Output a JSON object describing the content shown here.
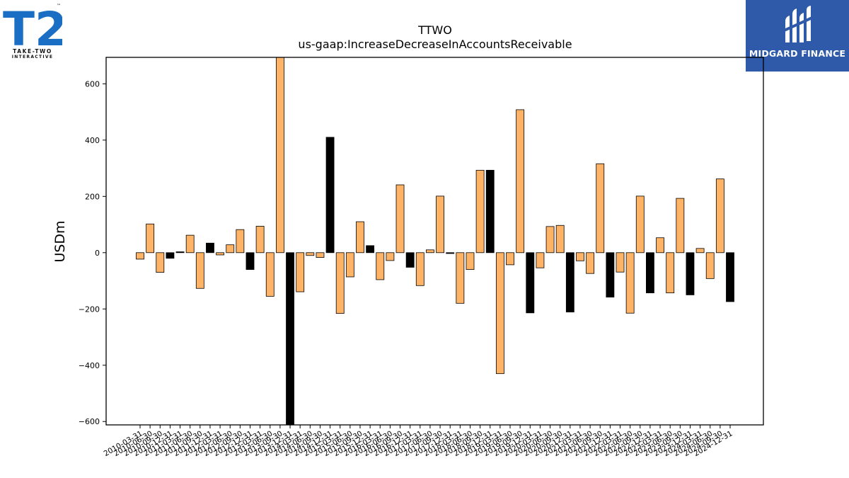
{
  "logos": {
    "left": {
      "mark": "T2",
      "line1": "TAKE-TWO",
      "line2": "INTERACTIVE",
      "tm": "™",
      "color": "#1a6fc4"
    },
    "right": {
      "name": "MIDGARD FINANCE",
      "bg": "#2f5aa9"
    }
  },
  "chart_data": {
    "type": "bar",
    "title": "TTWO",
    "subtitle": "us-gaap:IncreaseDecreaseInAccountsReceivable",
    "xlabel": "",
    "ylabel": "USDm",
    "ylim": [
      -612,
      694
    ],
    "yticks": [
      -600,
      -400,
      -200,
      0,
      200,
      400,
      600
    ],
    "grid": false,
    "colors": {
      "bar_default": "#ffb366",
      "bar_highlight": "#000000",
      "edge": "#000000"
    },
    "categories": [
      "2010-03-31",
      "2010-06-30",
      "2010-09-30",
      "2010-12-31",
      "2011-03-31",
      "2011-06-30",
      "2011-09-30",
      "2011-12-31",
      "2012-03-31",
      "2012-06-30",
      "2012-09-30",
      "2012-12-31",
      "2013-03-31",
      "2013-06-30",
      "2013-09-30",
      "2013-12-31",
      "2014-03-31",
      "2014-06-30",
      "2014-09-30",
      "2014-12-31",
      "2015-03-31",
      "2015-06-30",
      "2015-09-30",
      "2015-12-31",
      "2016-03-31",
      "2016-06-30",
      "2016-09-30",
      "2016-12-31",
      "2017-03-31",
      "2017-06-30",
      "2017-09-30",
      "2017-12-31",
      "2018-03-31",
      "2018-06-30",
      "2018-09-30",
      "2018-12-31",
      "2019-03-31",
      "2019-06-30",
      "2019-09-30",
      "2019-12-31",
      "2020-03-31",
      "2020-06-30",
      "2020-09-30",
      "2020-12-31",
      "2021-03-31",
      "2021-06-30",
      "2021-09-30",
      "2021-12-31",
      "2022-03-31",
      "2022-06-30",
      "2022-09-30",
      "2022-12-31",
      "2023-03-31",
      "2023-06-30",
      "2023-09-30",
      "2023-12-31",
      "2024-03-31",
      "2024-06-30",
      "2024-09-30",
      "2024-12-31"
    ],
    "values": [
      -23,
      102,
      -70,
      -20,
      3,
      62,
      -127,
      34,
      -8,
      28,
      82,
      -60,
      94,
      -155,
      694,
      -612,
      -139,
      -10,
      -17,
      410,
      -216,
      -86,
      110,
      25,
      -96,
      -28,
      241,
      -52,
      -117,
      10,
      201,
      -3,
      -180,
      -60,
      293,
      293,
      -430,
      -43,
      508,
      -214,
      -54,
      93,
      97,
      -211,
      -29,
      -74,
      316,
      -158,
      -69,
      -215,
      201,
      -143,
      53,
      -143,
      193,
      -150,
      15,
      -92,
      262,
      -174
    ],
    "highlight": [
      false,
      false,
      false,
      true,
      true,
      false,
      false,
      true,
      false,
      false,
      false,
      true,
      false,
      false,
      false,
      true,
      false,
      false,
      false,
      true,
      false,
      false,
      false,
      true,
      false,
      false,
      false,
      true,
      false,
      false,
      false,
      true,
      false,
      false,
      false,
      true,
      false,
      false,
      false,
      true,
      false,
      false,
      false,
      true,
      false,
      false,
      false,
      true,
      false,
      false,
      false,
      true,
      false,
      false,
      false,
      true,
      false,
      false,
      false,
      true
    ]
  }
}
